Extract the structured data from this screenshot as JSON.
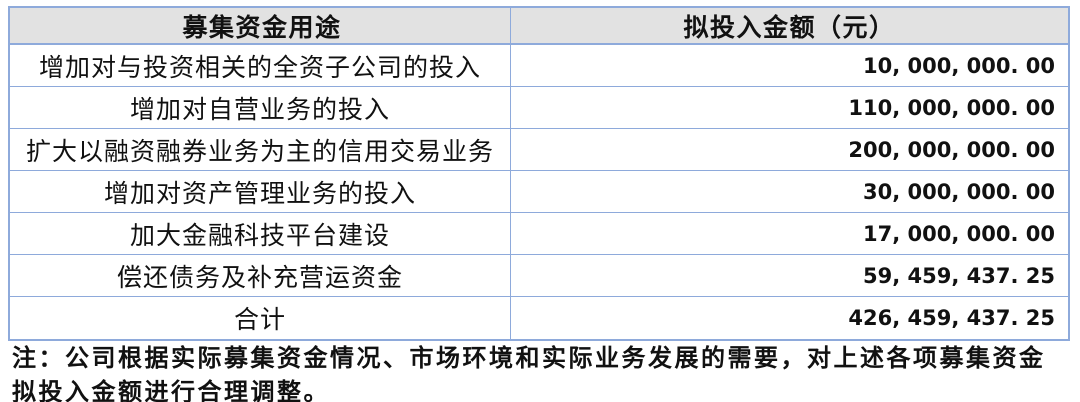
{
  "colors": {
    "table_border": "#8EAADB",
    "header_bg": "#E2E2E2",
    "text": "#111111"
  },
  "table": {
    "headers": {
      "use": "募集资金用途",
      "amount": "拟投入金额（元）"
    },
    "rows": [
      {
        "use": "增加对与投资相关的全资子公司的投入",
        "amount": "10, 000, 000. 00"
      },
      {
        "use": "增加对自营业务的投入",
        "amount": "110, 000, 000. 00"
      },
      {
        "use": "扩大以融资融券业务为主的信用交易业务",
        "amount": "200, 000, 000. 00"
      },
      {
        "use": "增加对资产管理业务的投入",
        "amount": "30, 000, 000. 00"
      },
      {
        "use": "加大金融科技平台建设",
        "amount": "17, 000, 000. 00"
      },
      {
        "use": "偿还债务及补充营运资金",
        "amount": "59, 459, 437. 25"
      },
      {
        "use": "合计",
        "amount": "426, 459, 437. 25"
      }
    ]
  },
  "note": {
    "line1": "注：公司根据实际募集资金情况、市场环境和实际业务发展的需要，对上述各项募集资金",
    "line2": "拟投入金额进行合理调整。"
  }
}
